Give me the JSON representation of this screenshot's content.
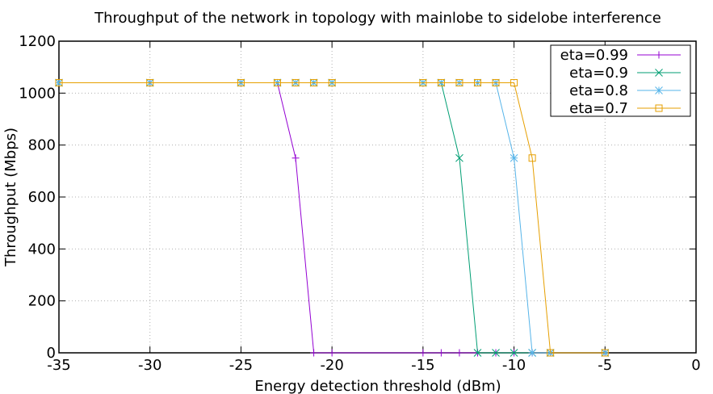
{
  "chart_data": {
    "type": "line",
    "title": "Throughput of the network in topology with mainlobe to sidelobe interference",
    "xlabel": "Energy detection threshold (dBm)",
    "ylabel": "Throughput (Mbps)",
    "xlim": [
      -35,
      0
    ],
    "ylim": [
      0,
      1200
    ],
    "xticks": [
      -35,
      -30,
      -25,
      -20,
      -15,
      -10,
      -5,
      0
    ],
    "yticks": [
      0,
      200,
      400,
      600,
      800,
      1000,
      1200
    ],
    "grid": true,
    "legend_position": "top-right",
    "series": [
      {
        "name": "eta=0.99",
        "color": "#9400d3",
        "marker": "plus",
        "x": [
          -35,
          -30,
          -25,
          -23,
          -22,
          -21,
          -20,
          -15,
          -14,
          -13,
          -12,
          -11,
          -10,
          -9,
          -8,
          -5
        ],
        "y": [
          1040,
          1040,
          1040,
          1040,
          750,
          0,
          0,
          0,
          0,
          0,
          0,
          0,
          0,
          0,
          0,
          0
        ]
      },
      {
        "name": "eta=0.9",
        "color": "#009e73",
        "marker": "cross",
        "x": [
          -35,
          -30,
          -25,
          -23,
          -22,
          -21,
          -20,
          -15,
          -14,
          -13,
          -12,
          -11,
          -10,
          -9,
          -8,
          -5
        ],
        "y": [
          1040,
          1040,
          1040,
          1040,
          1040,
          1040,
          1040,
          1040,
          1040,
          750,
          0,
          0,
          0,
          0,
          0,
          0
        ]
      },
      {
        "name": "eta=0.8",
        "color": "#56b4e9",
        "marker": "star",
        "x": [
          -35,
          -30,
          -25,
          -23,
          -22,
          -21,
          -20,
          -15,
          -14,
          -13,
          -12,
          -11,
          -10,
          -9,
          -8,
          -5
        ],
        "y": [
          1040,
          1040,
          1040,
          1040,
          1040,
          1040,
          1040,
          1040,
          1040,
          1040,
          1040,
          1040,
          750,
          0,
          0,
          0
        ]
      },
      {
        "name": "eta=0.7",
        "color": "#e69f00",
        "marker": "square",
        "x": [
          -35,
          -30,
          -25,
          -23,
          -22,
          -21,
          -20,
          -15,
          -14,
          -13,
          -12,
          -11,
          -10,
          -9,
          -8,
          -5
        ],
        "y": [
          1040,
          1040,
          1040,
          1040,
          1040,
          1040,
          1040,
          1040,
          1040,
          1040,
          1040,
          1040,
          1040,
          750,
          0,
          0
        ]
      }
    ]
  }
}
